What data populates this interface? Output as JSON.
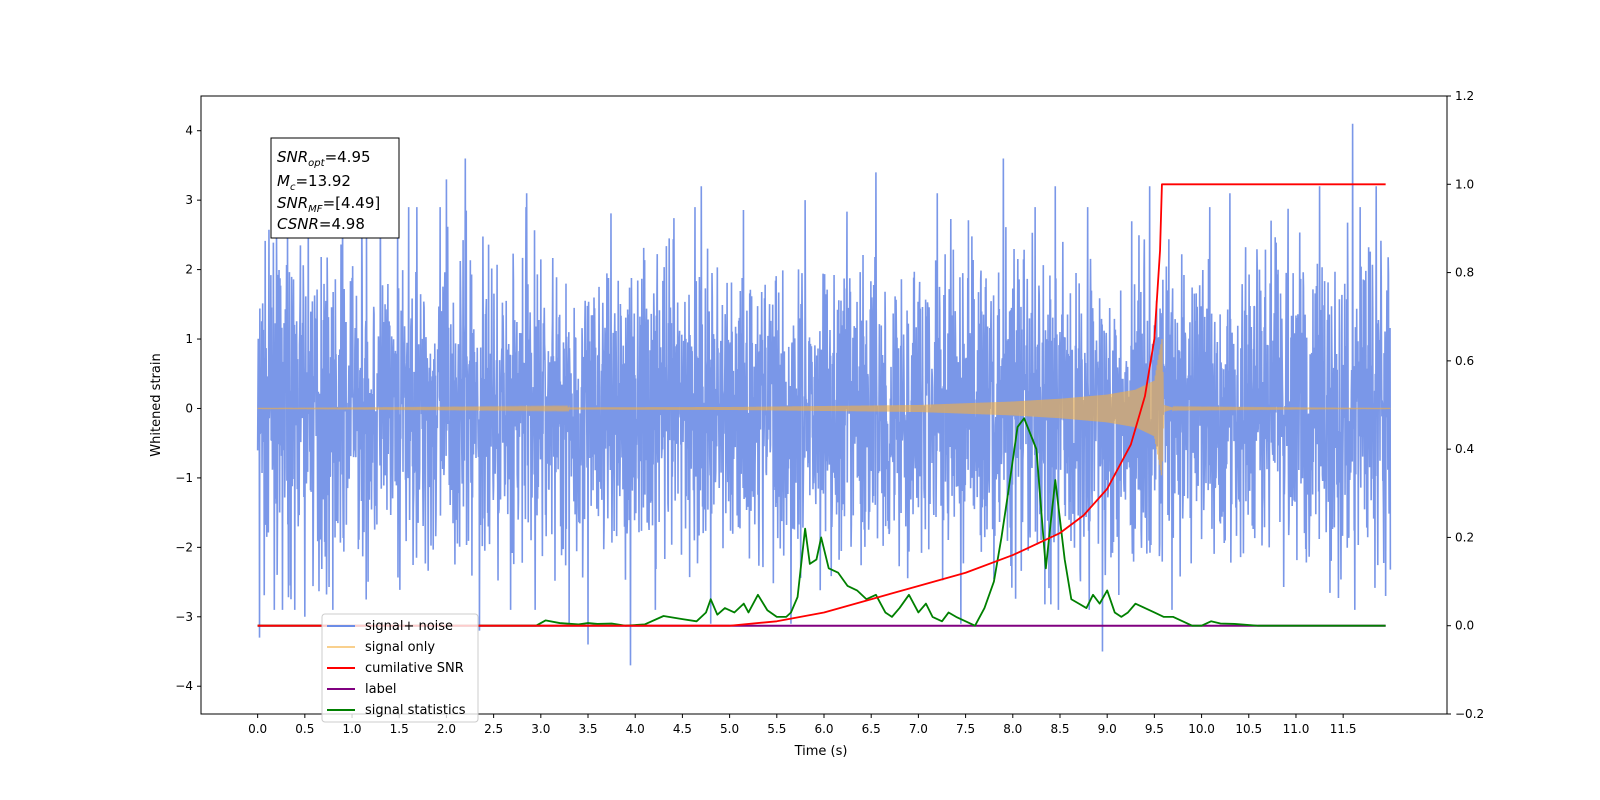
{
  "chart_data": {
    "type": "line",
    "xlabel": "Time (s)",
    "ylabel": "Whitened strain",
    "xlim": [
      -0.6,
      12.6
    ],
    "ylim": [
      -4.4,
      4.5
    ],
    "y2lim": [
      -0.2,
      1.2
    ],
    "xticks": [
      "0.0",
      "0.5",
      "1.0",
      "1.5",
      "2.0",
      "2.5",
      "3.0",
      "3.5",
      "4.0",
      "4.5",
      "5.0",
      "5.5",
      "6.0",
      "6.5",
      "7.0",
      "7.5",
      "8.0",
      "8.5",
      "9.0",
      "9.5",
      "10.0",
      "10.5",
      "11.0",
      "11.5"
    ],
    "yticks": [
      "4",
      "3",
      "2",
      "1",
      "0",
      "−1",
      "−2",
      "−3",
      "−4"
    ],
    "y2ticks": [
      "1.2",
      "1.0",
      "0.8",
      "0.6",
      "0.4",
      "0.2",
      "0.0",
      "−0.2"
    ],
    "grid": false,
    "legend_position": "lower-left",
    "annotation": {
      "snr_opt": {
        "sym": "SNR",
        "sub": "opt",
        "value": "=4.95"
      },
      "mc": {
        "sym": "M",
        "sub": "c",
        "value": "=13.92"
      },
      "snr_mf": {
        "sym": "SNR",
        "sub": "MF",
        "value": "=[4.49]"
      },
      "csnr": {
        "sym": "CSNR",
        "value": "=4.98"
      }
    },
    "series": [
      {
        "name": "signal+ noise",
        "color": "#6c8ce6",
        "axis": "left",
        "x_range": [
          0.0,
          12.0
        ],
        "noise_amplitude": 1.3,
        "peaks": [
          {
            "x": 0.02,
            "y": -3.3
          },
          {
            "x": 0.2,
            "y": 2.5
          },
          {
            "x": 0.5,
            "y": -3.0
          },
          {
            "x": 0.9,
            "y": 3.0
          },
          {
            "x": 1.3,
            "y": 3.1
          },
          {
            "x": 1.6,
            "y": 2.9
          },
          {
            "x": 2.0,
            "y": 3.3
          },
          {
            "x": 2.2,
            "y": 3.6
          },
          {
            "x": 2.35,
            "y": -3.2
          },
          {
            "x": 2.85,
            "y": 3.1
          },
          {
            "x": 3.3,
            "y": -3.1
          },
          {
            "x": 3.5,
            "y": -3.4
          },
          {
            "x": 3.95,
            "y": -3.7
          },
          {
            "x": 4.7,
            "y": 3.2
          },
          {
            "x": 4.8,
            "y": -3.1
          },
          {
            "x": 5.65,
            "y": -3.1
          },
          {
            "x": 5.8,
            "y": 3.0
          },
          {
            "x": 6.55,
            "y": 3.4
          },
          {
            "x": 7.2,
            "y": 3.1
          },
          {
            "x": 7.45,
            "y": -3.1
          },
          {
            "x": 7.9,
            "y": 3.6
          },
          {
            "x": 8.45,
            "y": 3.2
          },
          {
            "x": 8.95,
            "y": -3.5
          },
          {
            "x": 9.45,
            "y": 3.2
          },
          {
            "x": 10.3,
            "y": 3.1
          },
          {
            "x": 11.25,
            "y": 3.2
          },
          {
            "x": 11.6,
            "y": 4.1
          },
          {
            "x": 11.85,
            "y": 3.2
          },
          {
            "x": 11.95,
            "y": -2.7
          }
        ]
      },
      {
        "name": "signal only",
        "color": "#f5b041",
        "axis": "left",
        "envelope": [
          [
            0.0,
            0.0
          ],
          [
            5.0,
            0.02
          ],
          [
            7.0,
            0.05
          ],
          [
            8.0,
            0.1
          ],
          [
            8.5,
            0.14
          ],
          [
            9.0,
            0.2
          ],
          [
            9.3,
            0.27
          ],
          [
            9.5,
            0.4
          ],
          [
            9.58,
            1.0
          ],
          [
            9.6,
            0.05
          ],
          [
            9.7,
            0.01
          ],
          [
            12.0,
            0.0
          ]
        ]
      },
      {
        "name": "cumilative SNR",
        "color": "#ff0000",
        "axis": "right",
        "x": [
          0.0,
          4.5,
          5.0,
          5.5,
          6.0,
          6.5,
          7.0,
          7.5,
          8.0,
          8.5,
          8.75,
          9.0,
          9.25,
          9.4,
          9.5,
          9.56,
          9.58,
          9.6,
          11.95
        ],
        "y": [
          0.0,
          0.0,
          0.0,
          0.01,
          0.03,
          0.06,
          0.09,
          0.12,
          0.16,
          0.21,
          0.25,
          0.31,
          0.41,
          0.52,
          0.65,
          0.85,
          1.0,
          1.0,
          1.0
        ]
      },
      {
        "name": "label",
        "color": "#800080",
        "axis": "right",
        "x": [
          0.0,
          11.95
        ],
        "y": [
          0.0,
          0.0
        ]
      },
      {
        "name": "signal statistics",
        "color": "#008000",
        "axis": "right",
        "x": [
          0.0,
          2.95,
          3.05,
          3.2,
          3.4,
          3.5,
          3.6,
          3.75,
          3.9,
          4.1,
          4.3,
          4.5,
          4.65,
          4.75,
          4.8,
          4.87,
          4.95,
          5.05,
          5.15,
          5.2,
          5.3,
          5.4,
          5.5,
          5.6,
          5.65,
          5.72,
          5.8,
          5.85,
          5.92,
          5.97,
          6.05,
          6.15,
          6.25,
          6.35,
          6.45,
          6.55,
          6.6,
          6.65,
          6.72,
          6.8,
          6.9,
          7.0,
          7.08,
          7.15,
          7.25,
          7.32,
          7.4,
          7.5,
          7.6,
          7.7,
          7.8,
          7.88,
          7.95,
          8.05,
          8.12,
          8.25,
          8.35,
          8.45,
          8.55,
          8.62,
          8.7,
          8.78,
          8.85,
          8.92,
          9.0,
          9.08,
          9.15,
          9.22,
          9.3,
          9.4,
          9.5,
          9.6,
          9.7,
          9.8,
          9.9,
          10.0,
          10.1,
          10.2,
          10.35,
          10.6,
          11.95
        ],
        "y": [
          0.0,
          0.0,
          0.012,
          0.006,
          0.003,
          0.006,
          0.004,
          0.005,
          0.0,
          0.003,
          0.022,
          0.015,
          0.01,
          0.03,
          0.06,
          0.025,
          0.04,
          0.03,
          0.05,
          0.03,
          0.07,
          0.035,
          0.02,
          0.02,
          0.03,
          0.065,
          0.22,
          0.14,
          0.15,
          0.2,
          0.13,
          0.12,
          0.09,
          0.08,
          0.06,
          0.07,
          0.05,
          0.03,
          0.02,
          0.04,
          0.07,
          0.03,
          0.05,
          0.02,
          0.01,
          0.03,
          0.02,
          0.01,
          0.0,
          0.04,
          0.1,
          0.2,
          0.3,
          0.45,
          0.47,
          0.4,
          0.13,
          0.33,
          0.15,
          0.06,
          0.05,
          0.04,
          0.07,
          0.05,
          0.08,
          0.03,
          0.02,
          0.03,
          0.05,
          0.04,
          0.03,
          0.02,
          0.02,
          0.01,
          0.0,
          0.0,
          0.01,
          0.005,
          0.004,
          0.0,
          0.0
        ]
      }
    ]
  }
}
